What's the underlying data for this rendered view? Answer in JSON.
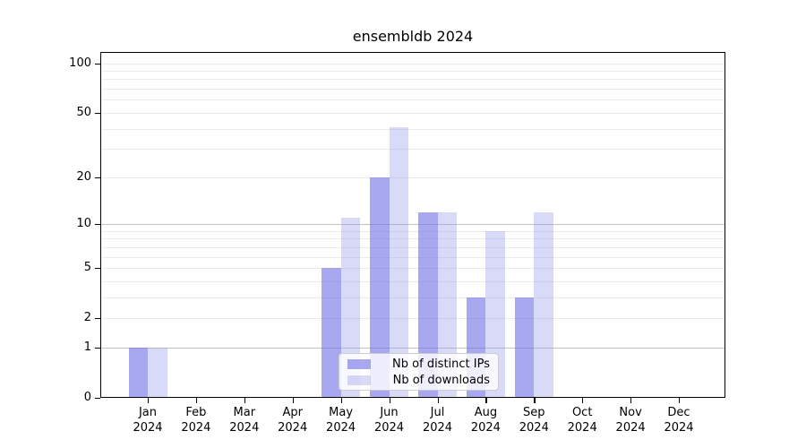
{
  "chart_data": {
    "type": "bar",
    "title": "ensembldb 2024",
    "categories": [
      "Jan 2024",
      "Feb 2024",
      "Mar 2024",
      "Apr 2024",
      "May 2024",
      "Jun 2024",
      "Jul 2024",
      "Aug 2024",
      "Sep 2024",
      "Oct 2024",
      "Nov 2024",
      "Dec 2024"
    ],
    "series": [
      {
        "name": "Nb of distinct IPs",
        "values": [
          1,
          0,
          0,
          0,
          5,
          20,
          12,
          3,
          3,
          0,
          0,
          0
        ],
        "color": "rgba(110,110,230,0.6)",
        "rendered_hex": "#a8a8f0"
      },
      {
        "name": "Nb of downloads",
        "values": [
          1,
          0,
          0,
          0,
          11,
          41,
          12,
          9,
          12,
          0,
          0,
          0
        ],
        "color": "rgba(146,146,235,0.35)",
        "rendered_hex": "#d9d9f8"
      }
    ],
    "xlabel": "",
    "ylabel": "",
    "y_ticks": [
      100,
      50,
      20,
      10,
      5,
      2,
      1,
      0
    ],
    "y_scale": "log1p",
    "ylim": [
      0,
      116
    ],
    "grid": "both",
    "grid_major_values": [
      1,
      10
    ],
    "grid_minor_values": [
      2,
      3,
      4,
      5,
      6,
      7,
      8,
      9,
      20,
      30,
      40,
      50,
      60,
      70,
      80,
      90,
      100
    ],
    "grid_major_color": "#c2c2c2",
    "grid_minor_color": "#ebebeb",
    "axis_color": "#000000",
    "legend_position": "lower center"
  }
}
